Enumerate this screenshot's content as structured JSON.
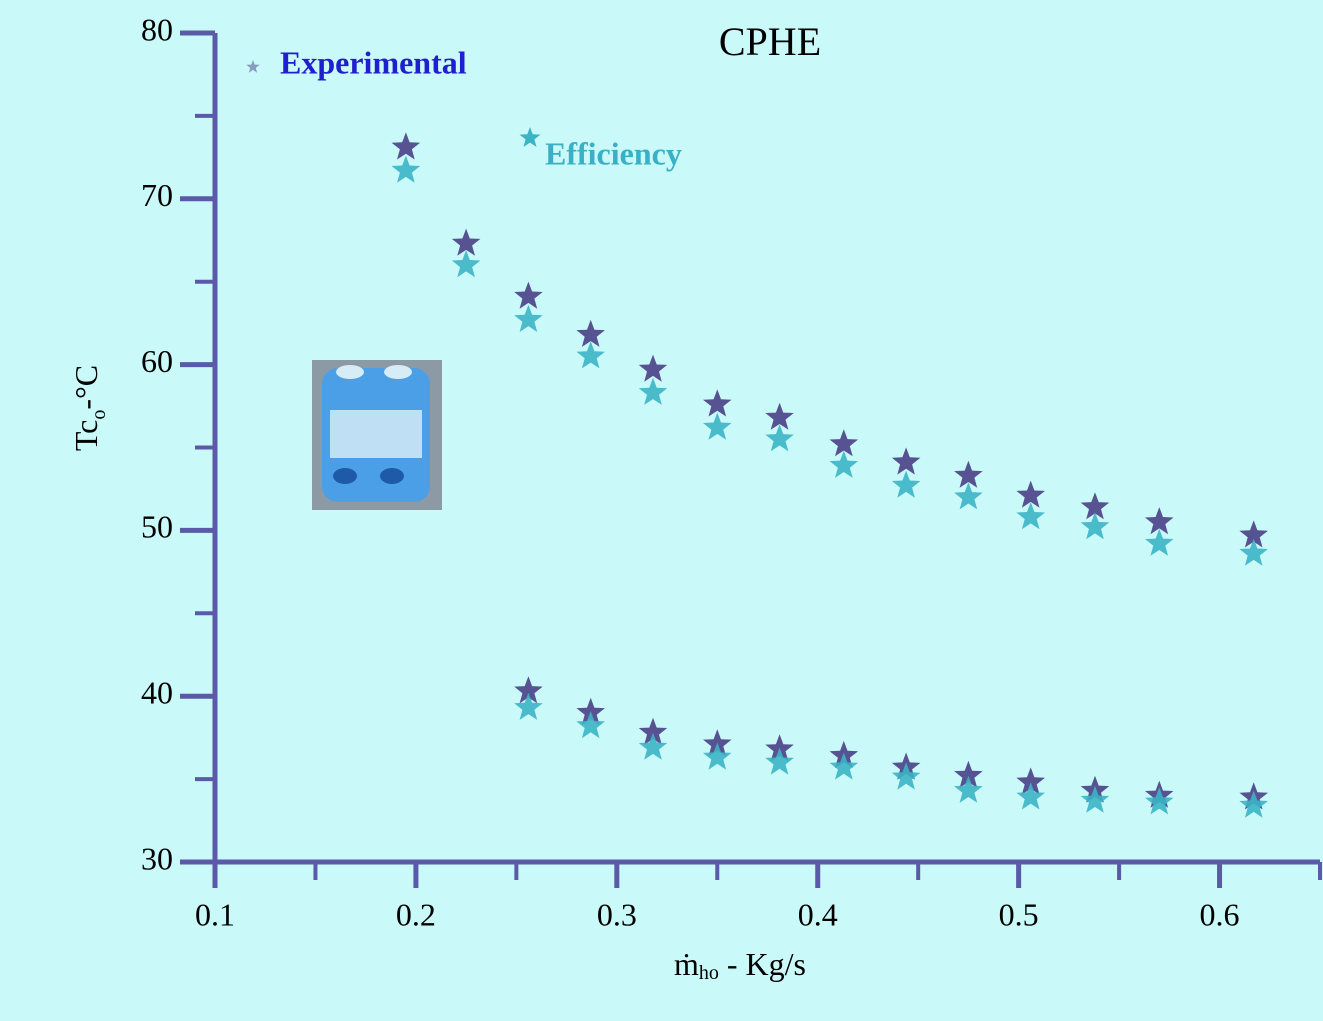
{
  "chart_data": {
    "type": "scatter",
    "title": "CPHE",
    "xlabel_parts": [
      "ṁ",
      "ho",
      " - Kg/s"
    ],
    "ylabel_parts": [
      "Tc",
      "o",
      "-°C"
    ],
    "xlim": [
      0.1,
      0.65
    ],
    "ylim": [
      30,
      80
    ],
    "xticks": [
      0.1,
      0.2,
      0.3,
      0.4,
      0.5,
      0.6
    ],
    "yticks": [
      30,
      40,
      50,
      60,
      70,
      80
    ],
    "xminorticks": [
      0.15,
      0.25,
      0.35,
      0.45,
      0.55,
      0.65
    ],
    "yminorticks": [
      35,
      45,
      55,
      65,
      75
    ],
    "series": [
      {
        "name": "Experimental",
        "color": "#4a3f86",
        "label_color": "#1f1fd0",
        "x": [
          0.195,
          0.225,
          0.256,
          0.287,
          0.318,
          0.35,
          0.381,
          0.413,
          0.444,
          0.475,
          0.506,
          0.538,
          0.57,
          0.617,
          0.256,
          0.287,
          0.318,
          0.35,
          0.381,
          0.413,
          0.444,
          0.475,
          0.506,
          0.538,
          0.57,
          0.617
        ],
        "values": [
          73.1,
          67.3,
          64.1,
          61.8,
          59.7,
          57.6,
          56.8,
          55.2,
          54.1,
          53.3,
          52.1,
          51.4,
          50.5,
          49.7,
          40.3,
          39.0,
          37.8,
          37.1,
          36.8,
          36.4,
          35.7,
          35.2,
          34.8,
          34.3,
          34.0,
          33.9
        ]
      },
      {
        "name": "Efficiency",
        "color": "#3cb4c4",
        "label_color": "#3ab0c6",
        "x": [
          0.195,
          0.225,
          0.256,
          0.287,
          0.318,
          0.35,
          0.381,
          0.413,
          0.444,
          0.475,
          0.506,
          0.538,
          0.57,
          0.617,
          0.256,
          0.287,
          0.318,
          0.35,
          0.381,
          0.413,
          0.444,
          0.475,
          0.506,
          0.538,
          0.57,
          0.617
        ],
        "values": [
          71.7,
          66.0,
          62.7,
          60.5,
          58.3,
          56.2,
          55.5,
          53.9,
          52.7,
          52.0,
          50.8,
          50.2,
          49.2,
          48.6,
          39.3,
          38.2,
          36.9,
          36.3,
          36.0,
          35.7,
          35.1,
          34.3,
          33.9,
          33.7,
          33.6,
          33.4
        ]
      }
    ]
  }
}
